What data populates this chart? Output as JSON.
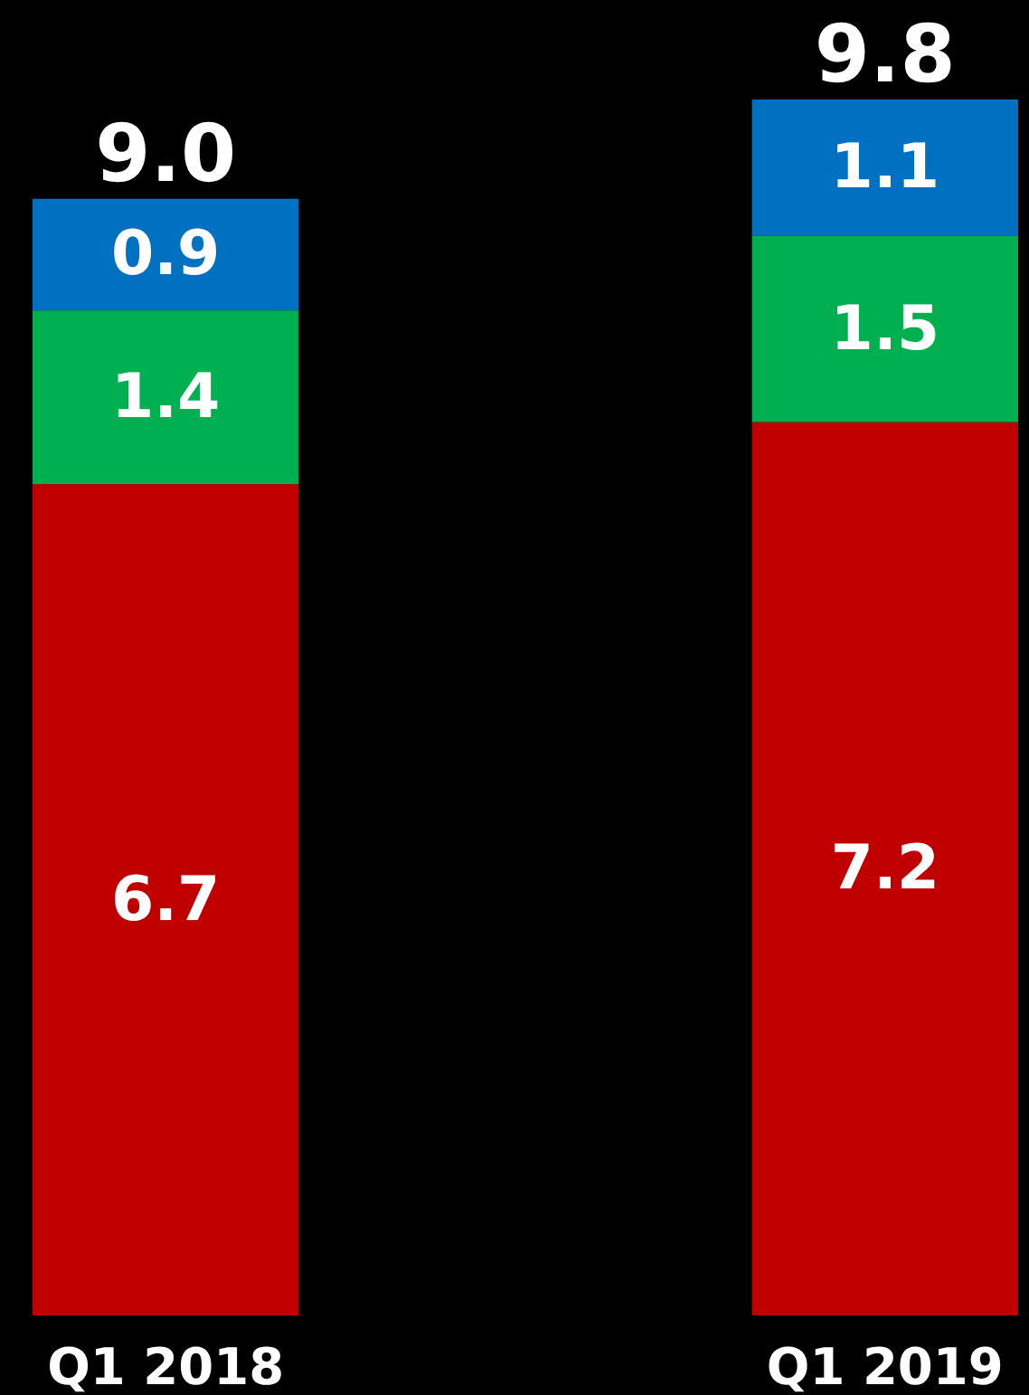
{
  "chart_data": {
    "type": "bar",
    "stacked": true,
    "data_labels": true,
    "categories": [
      "Q1 2018",
      "Q1 2019"
    ],
    "series": [
      {
        "color": "#c00000",
        "values": [
          6.7,
          7.2
        ]
      },
      {
        "color": "#00b050",
        "values": [
          1.4,
          1.5
        ]
      },
      {
        "color": "#0070c0",
        "values": [
          0.9,
          1.1
        ]
      }
    ],
    "totals": [
      "9.0",
      "9.8"
    ]
  }
}
